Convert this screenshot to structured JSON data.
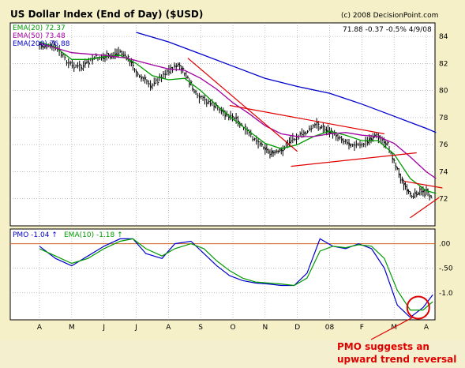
{
  "chart_data": [
    {
      "type": "line",
      "title": "US Dollar Index (End of Day) ($USD)",
      "copyright": "(c) 2008 DecisionPoint.com",
      "quote": "71.88  -0.37  -0.5%   4/9/08",
      "ylim": [
        70,
        85
      ],
      "yticks": [
        "84",
        "82",
        "80",
        "78",
        "76",
        "74",
        "72"
      ],
      "ytick_values": [
        84,
        82,
        80,
        78,
        76,
        74,
        72
      ],
      "xtick_labels": [
        "A",
        "M",
        "J",
        "J",
        "A",
        "S",
        "O",
        "N",
        "D",
        "08",
        "F",
        "M",
        "A"
      ],
      "xtick_index": [
        0,
        1,
        2,
        3,
        4,
        5,
        6,
        7,
        8,
        9,
        10,
        11,
        12
      ],
      "legend": [
        {
          "label": "EMA(20) 72.37",
          "color": "#009a00"
        },
        {
          "label": "EMA(50) 73.48",
          "color": "#a000a0"
        },
        {
          "label": "EMA(200) 76.88",
          "color": "#0000cc"
        }
      ],
      "series": [
        {
          "name": "Price",
          "color": "#000000",
          "x": [
            0,
            0.5,
            0.9,
            1.3,
            1.7,
            2.2,
            2.5,
            2.8,
            3.1,
            3.5,
            3.9,
            4.3,
            4.6,
            4.9,
            5.3,
            5.7,
            6.1,
            6.5,
            6.9,
            7.2,
            7.5,
            7.8,
            8.2,
            8.6,
            8.9,
            9.2,
            9.6,
            10.0,
            10.4,
            10.8,
            11.1,
            11.3,
            11.5,
            11.7,
            12.0,
            12.2
          ],
          "values": [
            83.3,
            83.2,
            82.0,
            81.7,
            82.4,
            82.5,
            82.9,
            82.2,
            81.0,
            80.4,
            81.3,
            81.9,
            80.9,
            79.5,
            79.1,
            78.4,
            77.8,
            76.8,
            76.0,
            75.3,
            75.5,
            76.4,
            76.8,
            77.5,
            77.1,
            76.7,
            76.1,
            75.9,
            76.7,
            76.0,
            74.2,
            73.0,
            72.2,
            72.5,
            72.5,
            72.0
          ]
        },
        {
          "name": "EMA(20)",
          "color": "#009a00",
          "x": [
            0,
            0.5,
            1.0,
            1.5,
            2.0,
            2.5,
            3.0,
            3.5,
            4.0,
            4.5,
            5.0,
            5.5,
            6.0,
            6.5,
            7.0,
            7.5,
            8.0,
            8.5,
            9.0,
            9.5,
            10.0,
            10.5,
            11.0,
            11.5,
            12.0,
            12.3
          ],
          "values": [
            83.6,
            83.2,
            82.3,
            82.3,
            82.5,
            82.6,
            82.0,
            81.1,
            80.8,
            80.9,
            80.0,
            78.9,
            77.9,
            77.0,
            76.1,
            75.7,
            76.0,
            76.6,
            77.0,
            76.7,
            76.3,
            76.3,
            75.3,
            73.5,
            72.6,
            72.4
          ]
        },
        {
          "name": "EMA(50)",
          "color": "#a000a0",
          "x": [
            0,
            1.0,
            2.0,
            2.7,
            3.5,
            4.0,
            4.5,
            5.0,
            5.5,
            6.0,
            6.5,
            7.0,
            7.5,
            8.0,
            8.5,
            9.0,
            9.5,
            10.0,
            10.5,
            11.0,
            11.5,
            12.0,
            12.3
          ],
          "values": [
            83.5,
            82.8,
            82.6,
            82.4,
            81.9,
            81.6,
            81.5,
            80.9,
            80.1,
            79.1,
            78.3,
            77.4,
            76.8,
            76.6,
            76.6,
            76.8,
            76.9,
            76.7,
            76.6,
            76.1,
            75.1,
            74.0,
            73.5
          ]
        },
        {
          "name": "EMA(200)",
          "color": "#0000cc",
          "x": [
            3.0,
            4.0,
            5.0,
            6.0,
            7.0,
            8.0,
            9.0,
            10.0,
            11.0,
            12.0,
            12.3
          ],
          "values": [
            84.3,
            83.6,
            82.7,
            81.8,
            80.9,
            80.3,
            79.8,
            79.0,
            78.1,
            77.2,
            76.9
          ]
        }
      ],
      "annotations": [
        {
          "kind": "trendline",
          "from": [
            4.6,
            82.4
          ],
          "to": [
            8.0,
            75.5
          ],
          "color": "#e00000"
        },
        {
          "kind": "trendline",
          "from": [
            5.9,
            78.9
          ],
          "to": [
            10.7,
            76.8
          ],
          "color": "#e00000"
        },
        {
          "kind": "trendline",
          "from": [
            7.8,
            74.4
          ],
          "to": [
            11.7,
            75.4
          ],
          "color": "#e00000"
        },
        {
          "kind": "trendline",
          "from": [
            11.3,
            73.3
          ],
          "to": [
            12.5,
            72.8
          ],
          "color": "#e00000"
        },
        {
          "kind": "trendline",
          "from": [
            11.5,
            70.6
          ],
          "to": [
            12.4,
            72.1
          ],
          "color": "#e00000"
        }
      ]
    },
    {
      "type": "line",
      "title": "",
      "ylim": [
        -1.55,
        0.3
      ],
      "yticks": [
        ".00",
        "-.50",
        "-1.0"
      ],
      "ytick_values": [
        0,
        -0.5,
        -1.0
      ],
      "xtick_labels": [
        "A",
        "M",
        "J",
        "J",
        "A",
        "S",
        "O",
        "N",
        "D",
        "08",
        "F",
        "M",
        "A"
      ],
      "xtick_index": [
        0,
        1,
        2,
        3,
        4,
        5,
        6,
        7,
        8,
        9,
        10,
        11,
        12
      ],
      "legend": [
        {
          "label": "PMO  -1.04",
          "arrow": "up",
          "color": "#0000cc"
        },
        {
          "label": "EMA(10) -1.18",
          "arrow": "up",
          "color": "#009a00"
        }
      ],
      "reference_line": 0,
      "series": [
        {
          "name": "PMO",
          "color": "#0000cc",
          "x": [
            0,
            0.5,
            1.0,
            1.5,
            2.0,
            2.5,
            2.9,
            3.3,
            3.8,
            4.2,
            4.7,
            5.1,
            5.5,
            5.9,
            6.3,
            6.7,
            7.1,
            7.5,
            7.9,
            8.3,
            8.7,
            9.1,
            9.5,
            9.9,
            10.3,
            10.7,
            11.1,
            11.5,
            11.9,
            12.2
          ],
          "values": [
            -0.05,
            -0.3,
            -0.45,
            -0.25,
            -0.05,
            0.1,
            0.1,
            -0.2,
            -0.3,
            0.0,
            0.05,
            -0.2,
            -0.45,
            -0.65,
            -0.75,
            -0.8,
            -0.82,
            -0.85,
            -0.85,
            -0.6,
            0.1,
            -0.05,
            -0.1,
            0.0,
            -0.1,
            -0.5,
            -1.25,
            -1.5,
            -1.3,
            -1.04
          ]
        },
        {
          "name": "EMA(10)",
          "color": "#009a00",
          "x": [
            0,
            0.5,
            1.0,
            1.5,
            2.0,
            2.5,
            2.9,
            3.3,
            3.8,
            4.2,
            4.7,
            5.1,
            5.5,
            5.9,
            6.3,
            6.7,
            7.1,
            7.5,
            7.9,
            8.3,
            8.7,
            9.1,
            9.5,
            9.9,
            10.3,
            10.7,
            11.1,
            11.5,
            11.9,
            12.2
          ],
          "values": [
            -0.1,
            -0.25,
            -0.4,
            -0.3,
            -0.1,
            0.05,
            0.1,
            -0.1,
            -0.25,
            -0.1,
            0.0,
            -0.1,
            -0.35,
            -0.55,
            -0.7,
            -0.78,
            -0.8,
            -0.82,
            -0.85,
            -0.7,
            -0.15,
            -0.05,
            -0.08,
            -0.02,
            -0.05,
            -0.3,
            -0.95,
            -1.35,
            -1.35,
            -1.18
          ]
        }
      ],
      "annotations": [
        {
          "kind": "circle",
          "at": [
            11.75,
            -1.3
          ],
          "color": "#e00000"
        },
        {
          "kind": "note",
          "text_lines": [
            "PMO suggests an",
            "upward trend reversal"
          ],
          "color": "#e00000"
        }
      ]
    }
  ]
}
